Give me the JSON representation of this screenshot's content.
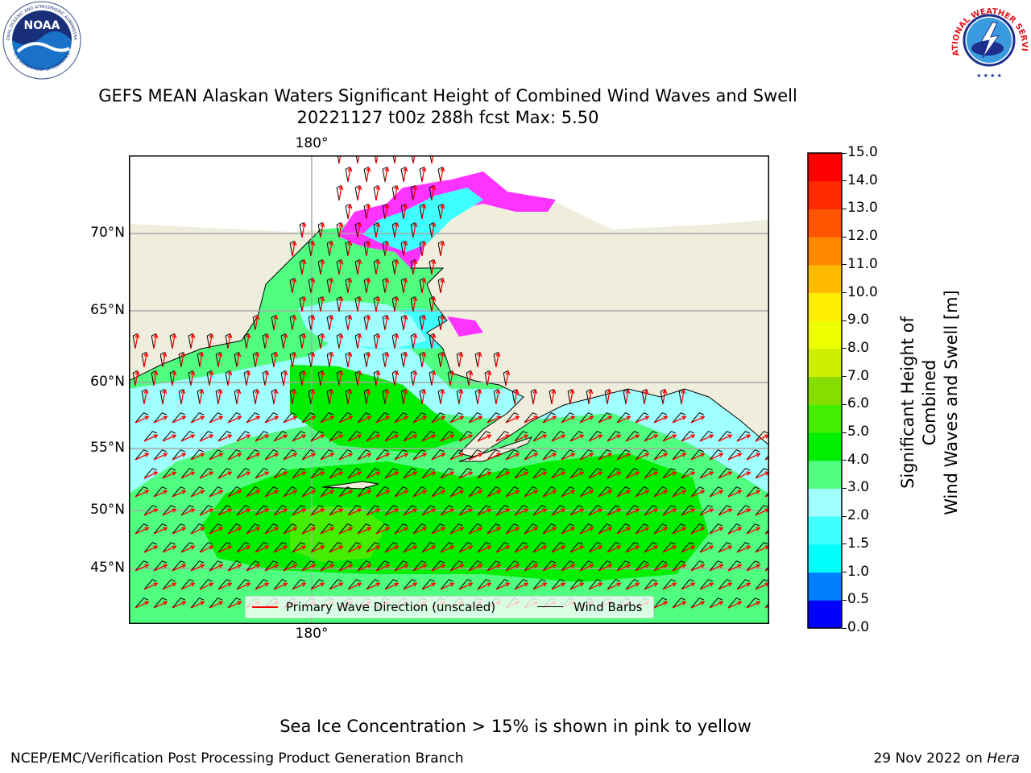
{
  "header": {
    "title_line1": "GEFS MEAN Alaskan Waters Significant Height of Combined Wind Waves and Swell",
    "title_line2": "20221127 t00z 288h fcst   Max: 5.50"
  },
  "logos": {
    "noaa_text": "NOAA",
    "noaa_ring_top": "NATIONAL OCEANIC AND ATMOSPHERIC ADMINISTRATION",
    "noaa_ring_bottom": "U.S. DEPARTMENT OF COMMERCE",
    "nws_ring": "NATIONAL WEATHER SERVICE"
  },
  "map": {
    "lon_label_top": "180°",
    "lon_label_bottom": "180°",
    "lat_labels": [
      "70°N",
      "65°N",
      "60°N",
      "55°N",
      "50°N",
      "45°N"
    ],
    "legend": {
      "wave_label": "Primary Wave Direction (unscaled)",
      "barb_label": "Wind Barbs"
    },
    "colors": {
      "land": "#efeddc",
      "ice": "#ff33ff",
      "wave_arrow": "#ff0000",
      "barb": "#000000"
    }
  },
  "colorbar": {
    "label_line1": "Significant Height of Combined",
    "label_line2": "Wind Waves and Swell [m]",
    "ticks": [
      "0.0",
      "0.5",
      "1.0",
      "1.5",
      "2.0",
      "3.0",
      "4.0",
      "5.0",
      "6.0",
      "7.0",
      "8.0",
      "9.0",
      "10.0",
      "11.0",
      "12.0",
      "13.0",
      "14.0",
      "15.0"
    ],
    "colors": [
      "#0000ff",
      "#0080ff",
      "#00ffff",
      "#40ffff",
      "#a0ffff",
      "#50ff80",
      "#00ee00",
      "#44ee00",
      "#88dd00",
      "#ccee00",
      "#eeff00",
      "#ffee00",
      "#ffbb00",
      "#ff8800",
      "#ff5500",
      "#ff2a00",
      "#ff0000"
    ]
  },
  "footer": {
    "ice_note": "Sea Ice Concentration > 15% is shown in pink to yellow",
    "credit": "NCEP/EMC/Verification Post Processing Product Generation Branch",
    "date": "29 Nov 2022 on ",
    "host": "Hera"
  }
}
